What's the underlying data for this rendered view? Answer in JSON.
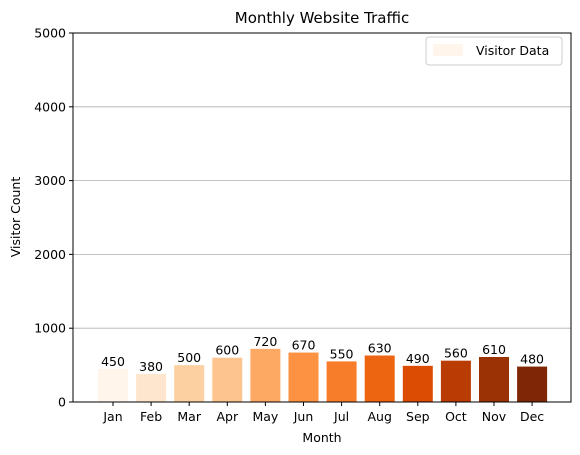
{
  "chart_data": {
    "type": "bar",
    "title": "Monthly Website Traffic",
    "xlabel": "Month",
    "ylabel": "Visitor Count",
    "categories": [
      "Jan",
      "Feb",
      "Mar",
      "Apr",
      "May",
      "Jun",
      "Jul",
      "Aug",
      "Sep",
      "Oct",
      "Nov",
      "Dec"
    ],
    "series": [
      {
        "name": "Visitor Data",
        "values": [
          450,
          380,
          500,
          600,
          720,
          670,
          550,
          630,
          490,
          560,
          610,
          480
        ],
        "colors": [
          "#fff5eb",
          "#fee6ce",
          "#fdd0a2",
          "#fdc48f",
          "#fda863",
          "#fd9243",
          "#f87d2a",
          "#ee6511",
          "#dc4c03",
          "#b93d03",
          "#9a3203",
          "#7f2704"
        ]
      }
    ],
    "ylim": [
      0,
      5000
    ],
    "yticks": [
      0,
      1000,
      2000,
      3000,
      4000,
      5000
    ],
    "grid": "y-major",
    "legend_position": "top-right",
    "legend_swatch_color": "#fff5eb",
    "data_labels": true
  }
}
